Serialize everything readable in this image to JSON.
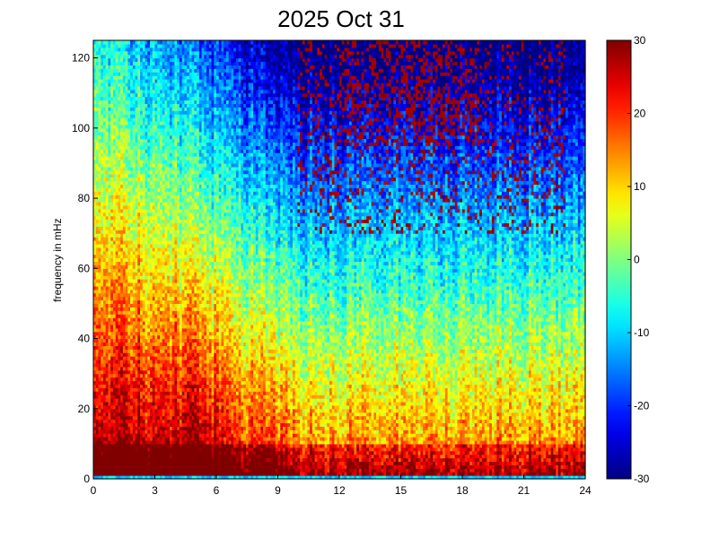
{
  "chart_data": {
    "type": "heatmap",
    "title": "2025 Oct 31",
    "xlabel": "",
    "ylabel": "frequency in mHz",
    "x_ticks": [
      0,
      3,
      6,
      9,
      12,
      15,
      18,
      21,
      24
    ],
    "y_ticks": [
      0,
      20,
      40,
      60,
      80,
      100,
      120
    ],
    "xlim": [
      0,
      24
    ],
    "ylim": [
      0,
      125
    ],
    "colorbar": {
      "colormap": "jet",
      "clim": [
        -30,
        30
      ],
      "ticks": [
        -30,
        -20,
        -10,
        0,
        10,
        20,
        30
      ]
    },
    "grid": false,
    "description_of_values": {
      "bins": {
        "time_h": 24,
        "freq_mHz": 125
      },
      "pattern": "power (dB) decreases with frequency; strong red band below ~10 mHz; elevated power 0-9 h up to ~50 mHz; low (blue) values 10-24 h above ~60 mHz with scattered saturated red pixels near the top"
    }
  },
  "colors": {
    "jet_stops": [
      "#00008f",
      "#0000ff",
      "#00ffff",
      "#ffff00",
      "#ff0000",
      "#800000"
    ]
  }
}
